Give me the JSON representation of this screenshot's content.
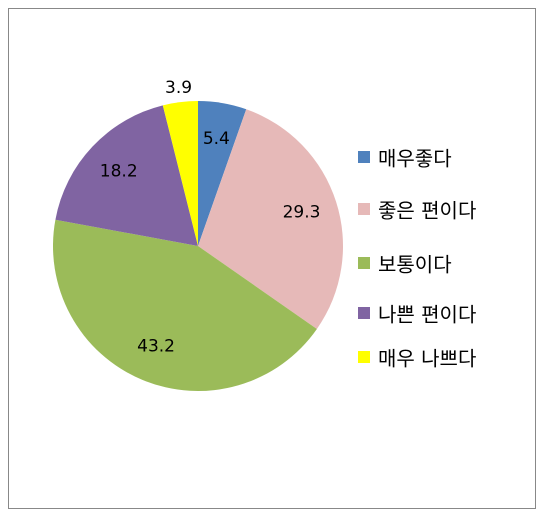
{
  "chart_data": {
    "type": "pie",
    "categories": [
      "매우좋다",
      "좋은 편이다",
      "보통이다",
      "나쁜 편이다",
      "매우 나쁘다"
    ],
    "values": [
      5.4,
      29.3,
      43.2,
      18.2,
      3.9
    ],
    "colors": [
      "#4f81bd",
      "#e6b9b8",
      "#9bbb59",
      "#8064a2",
      "#ffff00"
    ],
    "legend": "right"
  }
}
